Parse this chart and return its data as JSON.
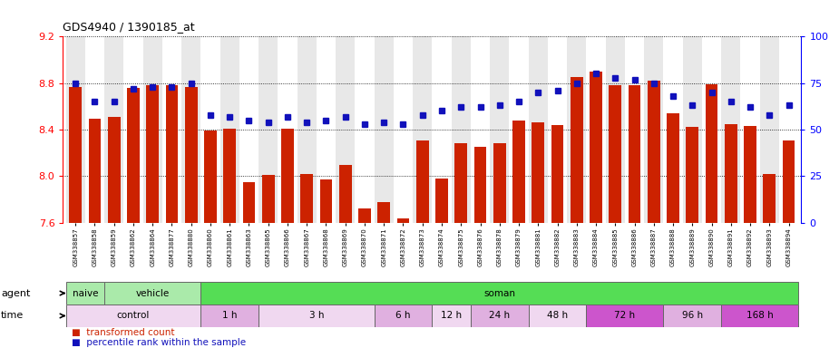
{
  "title": "GDS4940 / 1390185_at",
  "samples": [
    "GSM338857",
    "GSM338858",
    "GSM338859",
    "GSM338862",
    "GSM338864",
    "GSM338877",
    "GSM338880",
    "GSM338860",
    "GSM338861",
    "GSM338863",
    "GSM338865",
    "GSM338866",
    "GSM338867",
    "GSM338868",
    "GSM338869",
    "GSM338870",
    "GSM338871",
    "GSM338872",
    "GSM338873",
    "GSM338874",
    "GSM338875",
    "GSM338876",
    "GSM338878",
    "GSM338879",
    "GSM338881",
    "GSM338882",
    "GSM338883",
    "GSM338884",
    "GSM338885",
    "GSM338886",
    "GSM338887",
    "GSM338888",
    "GSM338889",
    "GSM338890",
    "GSM338891",
    "GSM338892",
    "GSM338893",
    "GSM338894"
  ],
  "bar_values": [
    8.77,
    8.49,
    8.51,
    8.76,
    8.78,
    8.78,
    8.77,
    8.39,
    8.41,
    7.95,
    8.01,
    8.41,
    8.02,
    7.97,
    8.1,
    7.72,
    7.78,
    7.64,
    8.31,
    7.98,
    8.28,
    8.25,
    8.28,
    8.48,
    8.46,
    8.44,
    8.85,
    8.9,
    8.78,
    8.78,
    8.82,
    8.54,
    8.42,
    8.79,
    8.45,
    8.43,
    8.02,
    8.31
  ],
  "percentile_values": [
    75,
    65,
    65,
    72,
    73,
    73,
    75,
    58,
    57,
    55,
    54,
    57,
    54,
    55,
    57,
    53,
    54,
    53,
    58,
    60,
    62,
    62,
    63,
    65,
    70,
    71,
    75,
    80,
    78,
    77,
    75,
    68,
    63,
    70,
    65,
    62,
    58,
    63
  ],
  "ymin": 7.6,
  "ymax": 9.2,
  "yticks_left": [
    7.6,
    8.0,
    8.4,
    8.8,
    9.2
  ],
  "yticks_right_pct": [
    0,
    25,
    50,
    75,
    100
  ],
  "bar_color": "#cc2200",
  "dot_color": "#1111bb",
  "agent_groups": [
    {
      "label": "naive",
      "start": 0,
      "end": 2,
      "color": "#aaeaaa"
    },
    {
      "label": "vehicle",
      "start": 2,
      "end": 7,
      "color": "#aaeaaa"
    },
    {
      "label": "soman",
      "start": 7,
      "end": 38,
      "color": "#55dd55"
    }
  ],
  "time_groups": [
    {
      "label": "control",
      "start": 0,
      "end": 7,
      "color": "#f0d8f0"
    },
    {
      "label": "1 h",
      "start": 7,
      "end": 10,
      "color": "#e0b0e0"
    },
    {
      "label": "3 h",
      "start": 10,
      "end": 16,
      "color": "#f0d8f0"
    },
    {
      "label": "6 h",
      "start": 16,
      "end": 19,
      "color": "#e0b0e0"
    },
    {
      "label": "12 h",
      "start": 19,
      "end": 21,
      "color": "#f0d8f0"
    },
    {
      "label": "24 h",
      "start": 21,
      "end": 24,
      "color": "#e0b0e0"
    },
    {
      "label": "48 h",
      "start": 24,
      "end": 27,
      "color": "#f0d8f0"
    },
    {
      "label": "72 h",
      "start": 27,
      "end": 31,
      "color": "#cc55cc"
    },
    {
      "label": "96 h",
      "start": 31,
      "end": 34,
      "color": "#e0b0e0"
    },
    {
      "label": "168 h",
      "start": 34,
      "end": 38,
      "color": "#cc55cc"
    }
  ],
  "legend_bar_label": "transformed count",
  "legend_dot_label": "percentile rank within the sample"
}
